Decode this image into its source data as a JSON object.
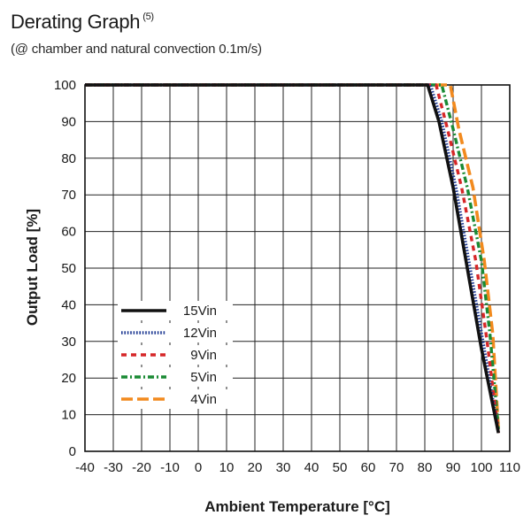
{
  "header": {
    "title": "Derating Graph",
    "title_note": "(5)",
    "subtitle": "(@ chamber and natural convection 0.1m/s)"
  },
  "chart_data": {
    "type": "line",
    "title": "Derating Graph",
    "xlabel": "Ambient Temperature [°C]",
    "ylabel": "Output Load [%]",
    "xlim": [
      -40,
      110
    ],
    "ylim": [
      0,
      100
    ],
    "x_ticks": [
      -40,
      -30,
      -20,
      -10,
      0,
      10,
      20,
      30,
      40,
      50,
      60,
      70,
      80,
      90,
      100,
      110
    ],
    "y_ticks": [
      0,
      10,
      20,
      30,
      40,
      50,
      60,
      70,
      80,
      90,
      100
    ],
    "grid": true,
    "legend_position": "lower-left",
    "series": [
      {
        "name": "15Vin",
        "color": "#111111",
        "style": "solid",
        "x": [
          -40,
          81,
          85,
          90,
          95,
          100,
          106
        ],
        "y": [
          100,
          100,
          90,
          72,
          50,
          28,
          5
        ]
      },
      {
        "name": "12Vin",
        "color": "#1f3a93",
        "style": "dotted",
        "x": [
          -40,
          82,
          86,
          91,
          96,
          101,
          106
        ],
        "y": [
          100,
          100,
          90,
          72,
          50,
          28,
          5
        ]
      },
      {
        "name": "9Vin",
        "color": "#d62728",
        "style": "dashed",
        "x": [
          -40,
          84,
          88,
          93,
          98,
          102,
          106
        ],
        "y": [
          100,
          100,
          88,
          72,
          52,
          30,
          5
        ]
      },
      {
        "name": "5Vin",
        "color": "#1a8a34",
        "style": "dashdot",
        "x": [
          -40,
          86,
          90,
          95,
          100,
          103,
          106
        ],
        "y": [
          100,
          100,
          88,
          72,
          52,
          32,
          6
        ]
      },
      {
        "name": "4Vin",
        "color": "#f28a1e",
        "style": "longdash",
        "x": [
          -40,
          89,
          92,
          97,
          101,
          104,
          106
        ],
        "y": [
          100,
          100,
          88,
          72,
          52,
          32,
          6
        ]
      }
    ]
  }
}
